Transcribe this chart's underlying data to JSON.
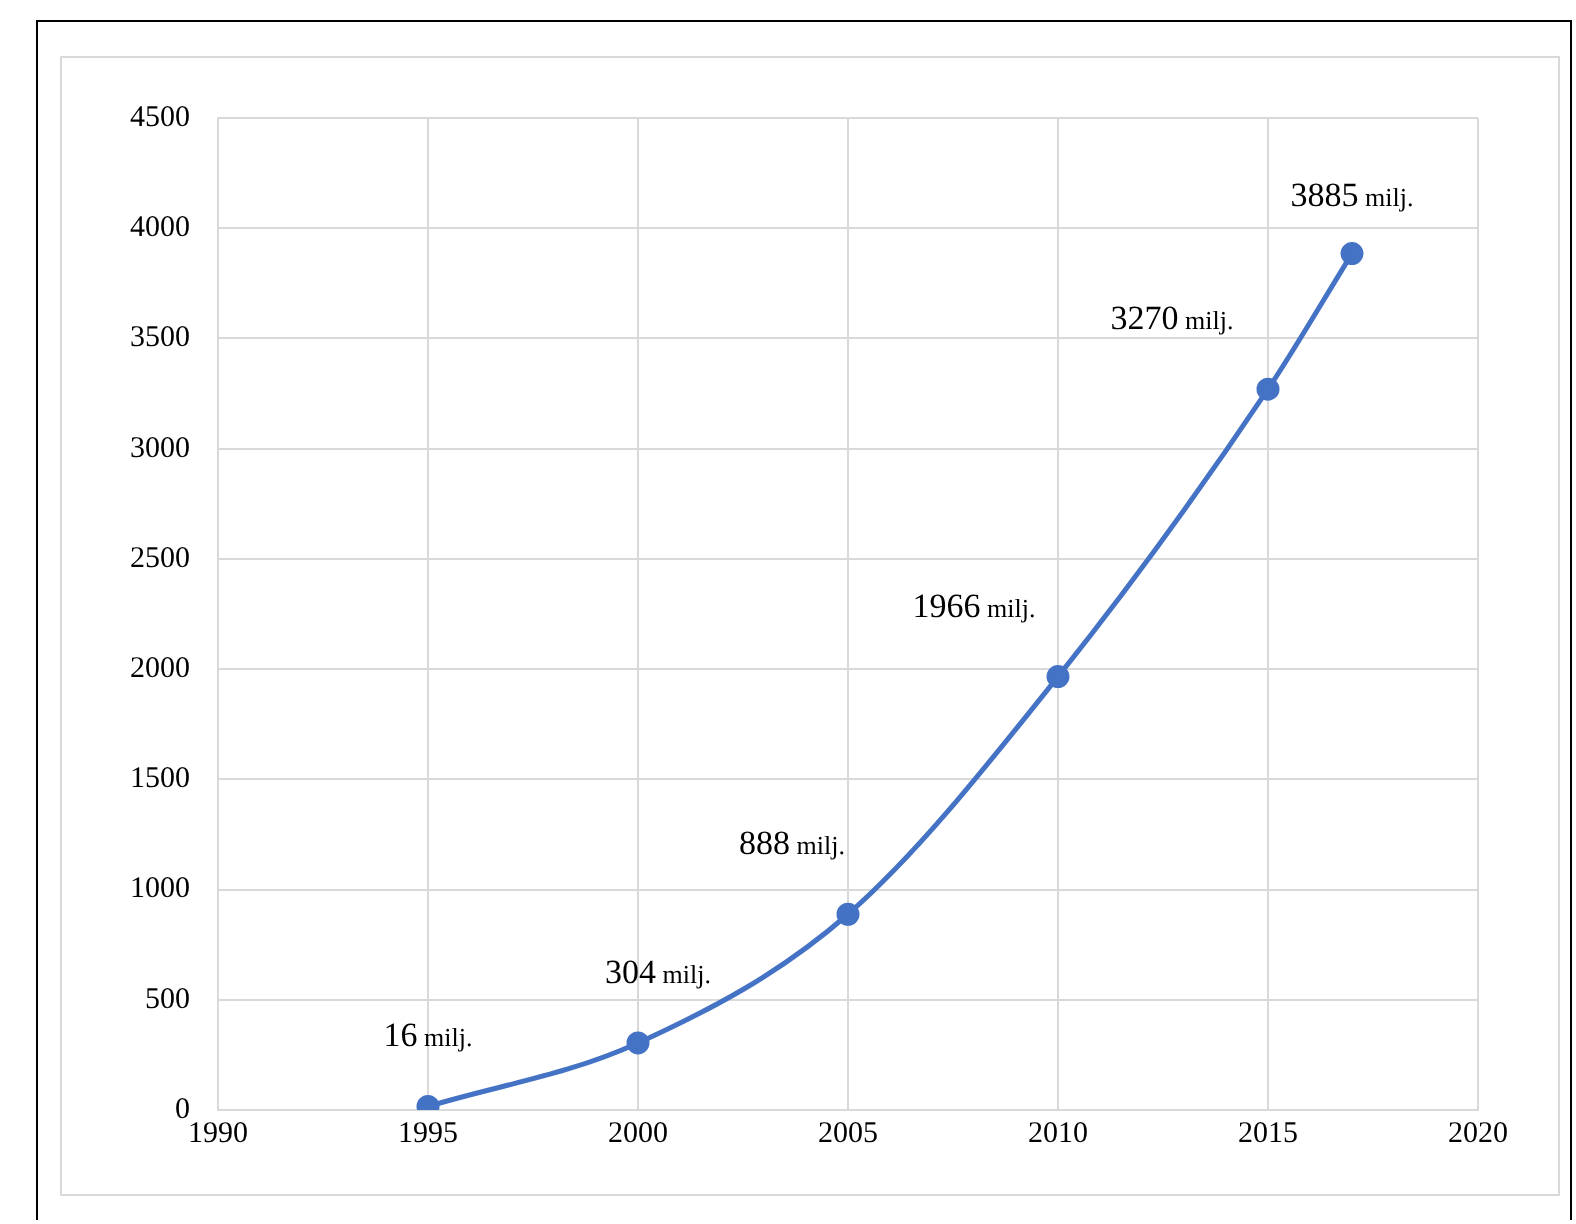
{
  "chart_data": {
    "type": "line",
    "x": [
      1995,
      2000,
      2005,
      2010,
      2015,
      2017
    ],
    "series": [
      {
        "color": "#4472c4",
        "values": [
          16,
          304,
          888,
          1966,
          3270,
          3885
        ],
        "value_labels": [
          "16 milj.",
          "304 milj.",
          "888 milj.",
          "1966 milj.",
          "3270 milj.",
          "3885 milj."
        ]
      }
    ],
    "xlim": [
      1990,
      2020
    ],
    "xticks": [
      1990,
      1995,
      2000,
      2005,
      2010,
      2015,
      2020
    ],
    "ylim": [
      0,
      4500
    ],
    "yticks": [
      0,
      500,
      1000,
      1500,
      2000,
      2500,
      3000,
      3500,
      4000,
      4500
    ],
    "grid": true,
    "marker": "circle",
    "line_style": "solid"
  }
}
